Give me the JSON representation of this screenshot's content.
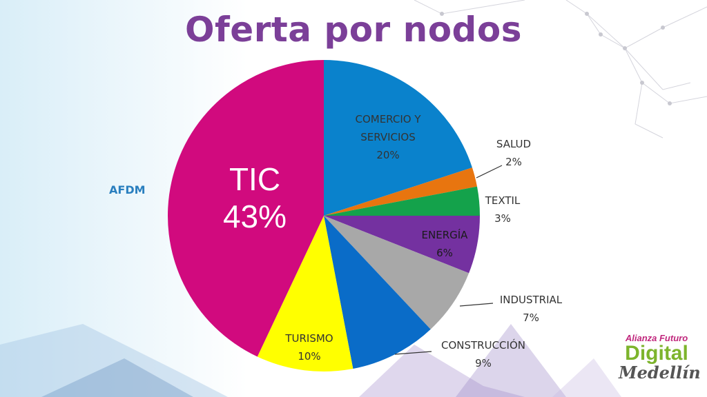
{
  "title": "Oferta por nodos",
  "side_label": "AFDM",
  "colors": {
    "title": "#7b3f98",
    "side_label": "#2a7fbf",
    "label_text": "#333333",
    "energia_text": "#1a1a1a"
  },
  "logo": {
    "line1": "Alianza Futuro",
    "line2": "Digital",
    "line3": "Medellín",
    "colors": {
      "line1": "#c0267c",
      "line2": "#7db42c",
      "line3": "#555555"
    }
  },
  "chart_data": {
    "type": "pie",
    "title": "Oferta por nodos",
    "slices": [
      {
        "name": "COMERCIO Y SERVICIOS",
        "label_lines": [
          "COMERCIO Y",
          "SERVICIOS"
        ],
        "pct_label": "20%",
        "value": 20,
        "color": "#0a82cc"
      },
      {
        "name": "SALUD",
        "label_lines": [
          "SALUD"
        ],
        "pct_label": "2%",
        "value": 2,
        "color": "#e8750f"
      },
      {
        "name": "TEXTIL",
        "label_lines": [
          "TEXTIL"
        ],
        "pct_label": "3%",
        "value": 3,
        "color": "#14a24b"
      },
      {
        "name": "ENERGÍA",
        "label_lines": [
          "ENERGÍA"
        ],
        "pct_label": "6%",
        "value": 6,
        "color": "#7431a0"
      },
      {
        "name": "INDUSTRIAL",
        "label_lines": [
          "INDUSTRIAL"
        ],
        "pct_label": "7%",
        "value": 7,
        "color": "#a8a8a8"
      },
      {
        "name": "CONSTRUCCIÓN",
        "label_lines": [
          "CONSTRUCCIÓN"
        ],
        "pct_label": "9%",
        "value": 9,
        "color": "#0a6cc8"
      },
      {
        "name": "TURISMO",
        "label_lines": [
          "TURISMO"
        ],
        "pct_label": "10%",
        "value": 10,
        "color": "#ffff00"
      },
      {
        "name": "TIC",
        "label_lines": [
          "TIC"
        ],
        "pct_label": "43%",
        "value": 43,
        "color": "#d10a7e"
      }
    ]
  }
}
